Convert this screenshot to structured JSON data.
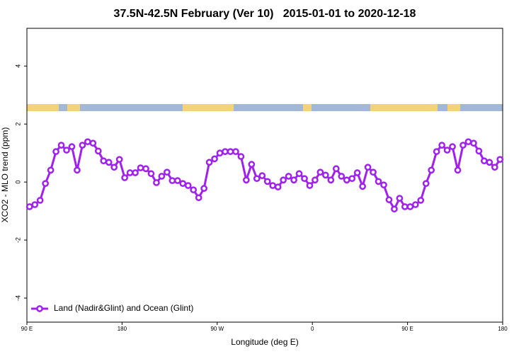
{
  "chart_data": {
    "type": "line",
    "title": "37.5N-42.5N February (Ver 10)   2015-01-01 to 2020-12-18",
    "x_label": "Longitude (deg E)",
    "y_label": "XCO2 - MLO trend (ppm)",
    "xlim": [
      90,
      540
    ],
    "xticks": [
      {
        "value": 90,
        "label": "90 E"
      },
      180,
      {
        "value": 270,
        "label": "90 W"
      },
      {
        "value": 360,
        "label": "0"
      },
      {
        "value": 450,
        "label": "90 E"
      },
      {
        "value": 540,
        "label": "180"
      }
    ],
    "ylim": [
      -4.83,
      5.3
    ],
    "yticks": [
      -4,
      -2,
      0,
      2,
      4
    ],
    "legend": "bottom-left",
    "x": [
      92.5,
      97.5,
      102.5,
      107.5,
      112.5,
      117.5,
      122.5,
      127.5,
      132.5,
      137.5,
      142.5,
      147.5,
      152.5,
      157.5,
      162.5,
      167.5,
      172.5,
      177.5,
      182.5,
      187.5,
      192.5,
      197.5,
      202.5,
      207.5,
      212.5,
      217.5,
      222.5,
      227.5,
      232.5,
      237.5,
      242.5,
      247.5,
      252.5,
      257.5,
      262.5,
      267.5,
      272.5,
      277.5,
      282.5,
      287.5,
      292.5,
      297.5,
      302.5,
      307.5,
      312.5,
      317.5,
      322.5,
      327.5,
      332.5,
      337.5,
      342.5,
      347.5,
      352.5,
      357.5,
      362.5,
      367.5,
      372.5,
      377.5,
      382.5,
      387.5,
      392.5,
      397.5,
      402.5,
      407.5,
      412.5,
      417.5,
      422.5,
      427.5,
      432.5,
      437.5,
      442.5,
      447.5,
      452.5,
      457.5,
      462.5,
      467.5,
      472.5,
      477.5,
      482.5,
      487.5,
      492.5,
      497.5,
      502.5,
      507.5,
      512.5,
      517.5,
      522.5,
      527.5,
      532.5,
      537.5
    ],
    "series": [
      {
        "name": "Land (Nadir&Glint) and Ocean (Glint)",
        "color": "#a020f0",
        "values": [
          -0.85,
          -0.78,
          -0.63,
          -0.05,
          0.41,
          1.05,
          1.27,
          1.1,
          1.22,
          0.41,
          1.27,
          1.39,
          1.34,
          1.07,
          0.73,
          0.68,
          0.51,
          0.78,
          0.15,
          0.32,
          0.32,
          0.49,
          0.46,
          0.29,
          -0.02,
          0.2,
          0.34,
          0.05,
          0.05,
          -0.05,
          -0.12,
          -0.27,
          -0.54,
          -0.22,
          0.68,
          0.8,
          1.0,
          1.05,
          1.05,
          1.05,
          0.88,
          0.07,
          0.61,
          0.12,
          0.22,
          0.02,
          -0.12,
          -0.17,
          0.07,
          0.2,
          0.07,
          0.29,
          0.12,
          -0.12,
          0.07,
          0.34,
          0.24,
          0.07,
          0.46,
          0.2,
          0.07,
          0.12,
          0.32,
          -0.15,
          0.51,
          0.34,
          0.02,
          -0.1,
          -0.61,
          -0.93,
          -0.56,
          -0.85,
          -0.85,
          -0.78,
          -0.63,
          -0.05,
          0.41,
          1.05,
          1.27,
          1.1,
          1.22,
          0.41,
          1.27,
          1.39,
          1.34,
          1.07,
          0.73,
          0.68,
          0.51,
          0.78
        ]
      }
    ]
  }
}
